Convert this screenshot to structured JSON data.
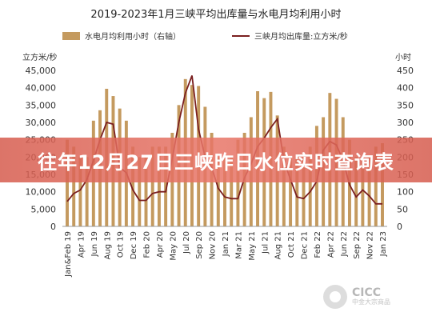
{
  "chart_data": {
    "type": "bar+line",
    "title": "2019-2023年1月三峡平均出库量与水电月均利用小时",
    "left_unit": "立方米/秒",
    "right_unit": "小时",
    "legend": [
      "水电月均利用小时（右轴）",
      "三峡月均出库量:立方米/秒"
    ],
    "left_ylim": [
      0,
      45000
    ],
    "right_ylim": [
      0,
      450
    ],
    "left_ticks": [
      "0",
      "5,000",
      "10,000",
      "15,000",
      "20,000",
      "25,000",
      "30,000",
      "35,000",
      "40,000",
      "45,000"
    ],
    "right_ticks": [
      "0",
      "50",
      "100",
      "150",
      "200",
      "250",
      "300",
      "350",
      "400",
      "450"
    ],
    "x_labels": [
      "Jan&Feb 19",
      "Apr 19",
      "Jun 19",
      "Aug 19",
      "Oct 19",
      "Dec 19",
      "Feb 20",
      "Apr 20",
      "May 20",
      "Jul 20",
      "Sep 20",
      "Nov 20",
      "Jan 21",
      "Mar 21",
      "May 21",
      "Jul 21",
      "Aug 21",
      "Oct 21",
      "Dec 21",
      "Feb 22",
      "Apr 22",
      "Jun 22",
      "Sep 22",
      "Nov 22",
      "Jan 23"
    ],
    "bars": [
      {
        "x": 0,
        "v": 250
      },
      {
        "x": 1,
        "v": 230
      },
      {
        "x": 2,
        "v": 200
      },
      {
        "x": 3,
        "v": 200
      },
      {
        "x": 4,
        "v": 305
      },
      {
        "x": 5,
        "v": 335
      },
      {
        "x": 6,
        "v": 397
      },
      {
        "x": 7,
        "v": 376
      },
      {
        "x": 8,
        "v": 340
      },
      {
        "x": 9,
        "v": 305
      },
      {
        "x": 10,
        "v": 230
      },
      {
        "x": 11,
        "v": 200
      },
      {
        "x": 12,
        "v": 200
      },
      {
        "x": 13,
        "v": 230
      },
      {
        "x": 14,
        "v": 230
      },
      {
        "x": 15,
        "v": 230
      },
      {
        "x": 16,
        "v": 270
      },
      {
        "x": 17,
        "v": 350
      },
      {
        "x": 18,
        "v": 425
      },
      {
        "x": 19,
        "v": 408
      },
      {
        "x": 20,
        "v": 405
      },
      {
        "x": 21,
        "v": 345
      },
      {
        "x": 22,
        "v": 270
      },
      {
        "x": 23,
        "v": 200
      },
      {
        "x": 24,
        "v": 200
      },
      {
        "x": 25,
        "v": 200
      },
      {
        "x": 26,
        "v": 250
      },
      {
        "x": 27,
        "v": 270
      },
      {
        "x": 28,
        "v": 315
      },
      {
        "x": 29,
        "v": 390
      },
      {
        "x": 30,
        "v": 370
      },
      {
        "x": 31,
        "v": 388
      },
      {
        "x": 32,
        "v": 320
      },
      {
        "x": 33,
        "v": 230
      },
      {
        "x": 34,
        "v": 200
      },
      {
        "x": 35,
        "v": 200
      },
      {
        "x": 36,
        "v": 200
      },
      {
        "x": 37,
        "v": 230
      },
      {
        "x": 38,
        "v": 290
      },
      {
        "x": 39,
        "v": 315
      },
      {
        "x": 40,
        "v": 385
      },
      {
        "x": 41,
        "v": 368
      },
      {
        "x": 42,
        "v": 315
      },
      {
        "x": 43,
        "v": 250
      },
      {
        "x": 44,
        "v": 200
      },
      {
        "x": 45,
        "v": 200
      },
      {
        "x": 46,
        "v": 200
      },
      {
        "x": 47,
        "v": 230
      },
      {
        "x": 48,
        "v": 240
      }
    ],
    "line": [
      {
        "x": 0,
        "v": 7200
      },
      {
        "x": 1,
        "v": 9500
      },
      {
        "x": 2,
        "v": 10500
      },
      {
        "x": 3,
        "v": 13500
      },
      {
        "x": 4,
        "v": 19000
      },
      {
        "x": 5,
        "v": 25000
      },
      {
        "x": 6,
        "v": 30000
      },
      {
        "x": 7,
        "v": 29500
      },
      {
        "x": 8,
        "v": 17000
      },
      {
        "x": 9,
        "v": 15500
      },
      {
        "x": 10,
        "v": 10500
      },
      {
        "x": 11,
        "v": 7500
      },
      {
        "x": 12,
        "v": 7500
      },
      {
        "x": 13,
        "v": 9500
      },
      {
        "x": 14,
        "v": 10000
      },
      {
        "x": 15,
        "v": 10000
      },
      {
        "x": 16,
        "v": 19500
      },
      {
        "x": 17,
        "v": 30000
      },
      {
        "x": 18,
        "v": 38500
      },
      {
        "x": 19,
        "v": 43500
      },
      {
        "x": 20,
        "v": 28000
      },
      {
        "x": 21,
        "v": 20000
      },
      {
        "x": 22,
        "v": 17000
      },
      {
        "x": 23,
        "v": 11000
      },
      {
        "x": 24,
        "v": 8500
      },
      {
        "x": 25,
        "v": 8000
      },
      {
        "x": 26,
        "v": 8000
      },
      {
        "x": 27,
        "v": 14000
      },
      {
        "x": 28,
        "v": 18000
      },
      {
        "x": 29,
        "v": 23000
      },
      {
        "x": 30,
        "v": 25500
      },
      {
        "x": 31,
        "v": 28500
      },
      {
        "x": 32,
        "v": 31000
      },
      {
        "x": 33,
        "v": 19000
      },
      {
        "x": 34,
        "v": 13500
      },
      {
        "x": 35,
        "v": 8500
      },
      {
        "x": 36,
        "v": 8000
      },
      {
        "x": 37,
        "v": 10000
      },
      {
        "x": 38,
        "v": 13000
      },
      {
        "x": 39,
        "v": 22000
      },
      {
        "x": 40,
        "v": 24500
      },
      {
        "x": 41,
        "v": 23500
      },
      {
        "x": 42,
        "v": 19000
      },
      {
        "x": 43,
        "v": 12000
      },
      {
        "x": 44,
        "v": 8500
      },
      {
        "x": 45,
        "v": 10500
      },
      {
        "x": 46,
        "v": 8800
      },
      {
        "x": 47,
        "v": 6500
      },
      {
        "x": 48,
        "v": 6500
      }
    ],
    "bar_color": "#c49a5f",
    "line_color": "#7a1f1f"
  },
  "banner": {
    "text": "往年12月27日三峡昨日水位实时查询表"
  },
  "logo": {
    "main": "CICC",
    "sub": "中金大宗商品"
  }
}
